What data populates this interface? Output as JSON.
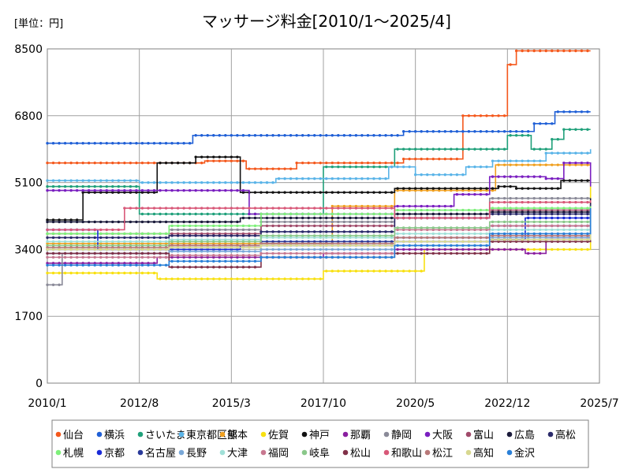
{
  "chart_data": {
    "type": "line",
    "title": "マッサージ料金[2010/1～2025/4]",
    "unit_label": "[単位：円]",
    "x_ticks": [
      "2010/1",
      "2012/8",
      "2015/3",
      "2017/10",
      "2020/5",
      "2022/12",
      "2025/7"
    ],
    "x_range": [
      "2010-01",
      "2025-07"
    ],
    "y_ticks": [
      0,
      1700,
      3400,
      5100,
      6800,
      8500
    ],
    "ylim": [
      0,
      8500
    ],
    "grid": true,
    "legend_position": "bottom",
    "series": [
      {
        "name": "仙台",
        "color": "#f4581c",
        "points": [
          [
            "2010-01",
            5600
          ],
          [
            "2012-01",
            5600
          ],
          [
            "2014-06",
            5650
          ],
          [
            "2015-08",
            5450
          ],
          [
            "2017-01",
            5600
          ],
          [
            "2020-01",
            5700
          ],
          [
            "2021-09",
            6800
          ],
          [
            "2022-12",
            8100
          ],
          [
            "2023-03",
            8450
          ],
          [
            "2025-04",
            8450
          ]
        ]
      },
      {
        "name": "横浜",
        "color": "#1f5fd6",
        "points": [
          [
            "2010-01",
            6100
          ],
          [
            "2014-02",
            6300
          ],
          [
            "2020-01",
            6400
          ],
          [
            "2023-06",
            6400
          ],
          [
            "2023-09",
            6600
          ],
          [
            "2024-04",
            6900
          ],
          [
            "2025-04",
            6900
          ]
        ]
      },
      {
        "name": "さいたま",
        "color": "#1fa07a",
        "points": [
          [
            "2010-01",
            5000
          ],
          [
            "2012-08",
            4300
          ],
          [
            "2017-10",
            5500
          ],
          [
            "2019-10",
            5950
          ],
          [
            "2022-12",
            6300
          ],
          [
            "2023-08",
            5950
          ],
          [
            "2024-03",
            6200
          ],
          [
            "2024-07",
            6450
          ],
          [
            "2025-04",
            6450
          ]
        ]
      },
      {
        "name": "東京都区部",
        "color": "#5ab4e8",
        "points": [
          [
            "2010-01",
            5150
          ],
          [
            "2012-08",
            5100
          ],
          [
            "2016-06",
            5200
          ],
          [
            "2019-08",
            5500
          ],
          [
            "2020-05",
            5300
          ],
          [
            "2021-10",
            5500
          ],
          [
            "2022-07",
            5650
          ],
          [
            "2024-01",
            5850
          ],
          [
            "2025-04",
            5950
          ]
        ]
      },
      {
        "name": "熊本",
        "color": "#f0a020",
        "points": [
          [
            "2010-01",
            3550
          ],
          [
            "2017-10",
            3550
          ],
          [
            "2018-01",
            4500
          ],
          [
            "2019-10",
            4900
          ],
          [
            "2022-08",
            5550
          ],
          [
            "2025-04",
            5550
          ]
        ]
      },
      {
        "name": "佐賀",
        "color": "#f8e010",
        "points": [
          [
            "2010-01",
            2800
          ],
          [
            "2013-02",
            2650
          ],
          [
            "2017-10",
            2850
          ],
          [
            "2020-08",
            3400
          ],
          [
            "2024-12",
            3400
          ],
          [
            "2025-04",
            5300
          ]
        ]
      },
      {
        "name": "神戸",
        "color": "#111111",
        "points": [
          [
            "2010-01",
            4150
          ],
          [
            "2011-01",
            4850
          ],
          [
            "2013-02",
            5600
          ],
          [
            "2014-03",
            5750
          ],
          [
            "2015-06",
            4850
          ],
          [
            "2019-10",
            4950
          ],
          [
            "2022-09",
            5000
          ],
          [
            "2023-03",
            4950
          ],
          [
            "2024-06",
            5150
          ],
          [
            "2025-04",
            5150
          ]
        ]
      },
      {
        "name": "那覇",
        "color": "#8a1fa0",
        "points": [
          [
            "2010-01",
            3050
          ],
          [
            "2013-02",
            3200
          ],
          [
            "2017-10",
            3300
          ],
          [
            "2019-10",
            3400
          ],
          [
            "2022-06",
            3400
          ],
          [
            "2023-06",
            3300
          ],
          [
            "2024-01",
            3700
          ],
          [
            "2025-04",
            3700
          ]
        ]
      },
      {
        "name": "静岡",
        "color": "#8a8a98",
        "points": [
          [
            "2010-01",
            2500
          ],
          [
            "2010-06",
            3300
          ],
          [
            "2013-06",
            3900
          ],
          [
            "2016-01",
            4100
          ],
          [
            "2019-10",
            4300
          ],
          [
            "2022-06",
            4700
          ],
          [
            "2025-04",
            4700
          ]
        ]
      },
      {
        "name": "大阪",
        "color": "#7a1fc0",
        "points": [
          [
            "2010-01",
            4900
          ],
          [
            "2015-06",
            4900
          ],
          [
            "2015-09",
            4300
          ],
          [
            "2019-10",
            4500
          ],
          [
            "2021-06",
            4800
          ],
          [
            "2022-06",
            5250
          ],
          [
            "2024-01",
            5200
          ],
          [
            "2024-07",
            5600
          ],
          [
            "2025-04",
            5000
          ]
        ]
      },
      {
        "name": "富山",
        "color": "#a04a6a",
        "points": [
          [
            "2010-01",
            3800
          ],
          [
            "2013-06",
            3800
          ],
          [
            "2016-01",
            4000
          ],
          [
            "2019-10",
            4200
          ],
          [
            "2022-06",
            4400
          ],
          [
            "2025-04",
            4600
          ]
        ]
      },
      {
        "name": "広島",
        "color": "#1a1a3a",
        "points": [
          [
            "2010-01",
            4100
          ],
          [
            "2015-06",
            4200
          ],
          [
            "2019-10",
            4300
          ],
          [
            "2022-06",
            4350
          ],
          [
            "2025-04",
            4700
          ]
        ]
      },
      {
        "name": "高松",
        "color": "#2a2a6a",
        "points": [
          [
            "2010-01",
            3700
          ],
          [
            "2013-06",
            3750
          ],
          [
            "2016-01",
            3850
          ],
          [
            "2019-10",
            4200
          ],
          [
            "2022-06",
            4300
          ],
          [
            "2025-04",
            4550
          ]
        ]
      },
      {
        "name": "札幌",
        "color": "#7ef07a",
        "points": [
          [
            "2010-01",
            3800
          ],
          [
            "2013-06",
            4000
          ],
          [
            "2016-01",
            4300
          ],
          [
            "2019-10",
            4400
          ],
          [
            "2022-06",
            4450
          ],
          [
            "2025-04",
            4500
          ]
        ]
      },
      {
        "name": "京都",
        "color": "#1a2ad8",
        "points": [
          [
            "2010-01",
            3900
          ],
          [
            "2011-06",
            3400
          ],
          [
            "2015-06",
            3500
          ],
          [
            "2019-10",
            3600
          ],
          [
            "2022-06",
            3650
          ],
          [
            "2023-06",
            4200
          ],
          [
            "2025-04",
            4400
          ]
        ]
      },
      {
        "name": "名古屋",
        "color": "#2a3a9a",
        "points": [
          [
            "2010-01",
            3400
          ],
          [
            "2013-06",
            3500
          ],
          [
            "2016-01",
            3600
          ],
          [
            "2019-10",
            3700
          ],
          [
            "2022-06",
            4000
          ],
          [
            "2025-04",
            4300
          ]
        ]
      },
      {
        "name": "長野",
        "color": "#7aa8d8",
        "points": [
          [
            "2010-01",
            3300
          ],
          [
            "2013-06",
            3350
          ],
          [
            "2016-01",
            3400
          ],
          [
            "2019-10",
            3500
          ],
          [
            "2022-06",
            3700
          ],
          [
            "2025-04",
            4100
          ]
        ]
      },
      {
        "name": "大津",
        "color": "#a0e0d8",
        "points": [
          [
            "2010-01",
            3600
          ],
          [
            "2013-06",
            3650
          ],
          [
            "2016-01",
            3700
          ],
          [
            "2019-10",
            3800
          ],
          [
            "2022-06",
            3900
          ],
          [
            "2025-04",
            4200
          ]
        ]
      },
      {
        "name": "福岡",
        "color": "#c87890",
        "points": [
          [
            "2010-01",
            3200
          ],
          [
            "2013-06",
            3250
          ],
          [
            "2016-01",
            3300
          ],
          [
            "2019-10",
            3900
          ],
          [
            "2022-06",
            4000
          ],
          [
            "2025-04",
            4250
          ]
        ]
      },
      {
        "name": "岐阜",
        "color": "#8ac88a",
        "points": [
          [
            "2010-01",
            3500
          ],
          [
            "2013-06",
            3600
          ],
          [
            "2016-01",
            3750
          ],
          [
            "2019-10",
            3950
          ],
          [
            "2022-06",
            4100
          ],
          [
            "2025-04",
            4400
          ]
        ]
      },
      {
        "name": "松山",
        "color": "#803048",
        "points": [
          [
            "2010-01",
            3300
          ],
          [
            "2013-06",
            2950
          ],
          [
            "2016-01",
            3200
          ],
          [
            "2019-10",
            3300
          ],
          [
            "2022-06",
            3600
          ],
          [
            "2025-04",
            4000
          ]
        ]
      },
      {
        "name": "和歌山",
        "color": "#d85878",
        "points": [
          [
            "2010-01",
            3900
          ],
          [
            "2012-03",
            4450
          ],
          [
            "2016-01",
            4450
          ],
          [
            "2019-10",
            4200
          ],
          [
            "2022-06",
            4600
          ],
          [
            "2025-04",
            4650
          ]
        ]
      },
      {
        "name": "松江",
        "color": "#b87878",
        "points": [
          [
            "2010-01",
            3450
          ],
          [
            "2013-06",
            3500
          ],
          [
            "2016-01",
            3550
          ],
          [
            "2019-10",
            3700
          ],
          [
            "2022-06",
            3750
          ],
          [
            "2025-04",
            3900
          ]
        ]
      },
      {
        "name": "高知",
        "color": "#d8d890",
        "points": [
          [
            "2010-01",
            3400
          ],
          [
            "2013-06",
            3450
          ],
          [
            "2016-01",
            3500
          ],
          [
            "2019-10",
            3600
          ],
          [
            "2022-06",
            3650
          ],
          [
            "2025-04",
            3800
          ]
        ]
      },
      {
        "name": "金沢",
        "color": "#2a80d8",
        "points": [
          [
            "2010-01",
            3000
          ],
          [
            "2013-06",
            3100
          ],
          [
            "2016-01",
            3200
          ],
          [
            "2019-10",
            3500
          ],
          [
            "2022-06",
            3800
          ],
          [
            "2025-04",
            4450
          ]
        ]
      }
    ]
  }
}
